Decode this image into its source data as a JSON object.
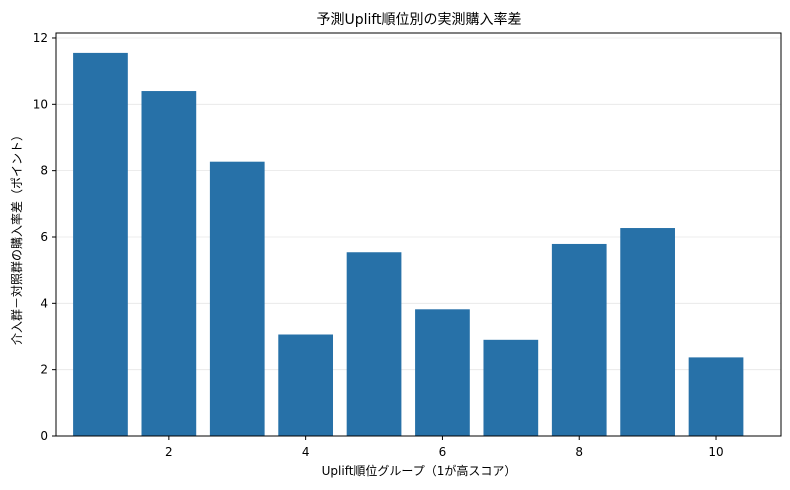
{
  "chart_data": {
    "type": "bar",
    "title": "予測Uplift順位別の実測購入率差",
    "xlabel": "Uplift順位グループ（1が高スコア）",
    "ylabel": "介入群－対照群の購入率差（ポイント）",
    "x": [
      1,
      2,
      3,
      4,
      5,
      6,
      7,
      8,
      9,
      10
    ],
    "values": [
      11.55,
      10.4,
      8.27,
      3.06,
      5.54,
      3.82,
      2.9,
      5.79,
      6.27,
      2.37
    ],
    "xticks": [
      2,
      4,
      6,
      8,
      10
    ],
    "yticks": [
      0,
      2,
      4,
      6,
      8,
      10,
      12
    ],
    "xlim": [
      0.35,
      10.95
    ],
    "ylim": [
      0,
      12.15
    ],
    "grid": "horizontal",
    "bar_color": "#2771a8"
  }
}
